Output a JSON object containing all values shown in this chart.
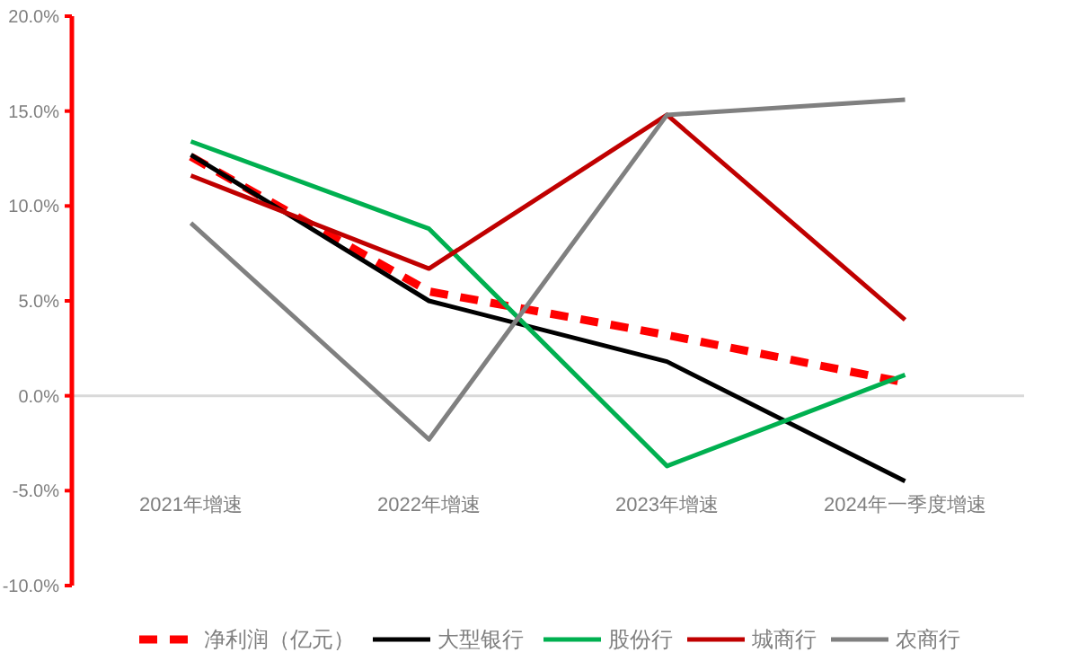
{
  "chart_data": {
    "type": "line",
    "categories": [
      "2021年增速",
      "2022年增速",
      "2023年增速",
      "2024年一季度增速"
    ],
    "series": [
      {
        "name": "净利润（亿元）",
        "color": "#ff0000",
        "line_style": "dashed",
        "values": [
          12.6,
          5.5,
          3.2,
          0.7
        ]
      },
      {
        "name": "大型银行",
        "color": "#000000",
        "values": [
          12.7,
          5.0,
          1.8,
          -4.5
        ]
      },
      {
        "name": "股份行",
        "color": "#00b050",
        "values": [
          13.4,
          8.8,
          -3.7,
          1.1
        ]
      },
      {
        "name": "城商行",
        "color": "#c00000",
        "values": [
          11.6,
          6.7,
          14.8,
          4.0
        ]
      },
      {
        "name": "农商行",
        "color": "#808080",
        "values": [
          9.1,
          -2.3,
          14.8,
          15.6
        ]
      }
    ],
    "ylim": [
      -10,
      20
    ],
    "yticks": [
      {
        "value": -10,
        "label": "-10.0%"
      },
      {
        "value": -5,
        "label": "-5.0%"
      },
      {
        "value": 0,
        "label": "0.0%"
      },
      {
        "value": 5,
        "label": "5.0%"
      },
      {
        "value": 10,
        "label": "10.0%"
      },
      {
        "value": 15,
        "label": "15.0%"
      },
      {
        "value": 20,
        "label": "20.0%"
      }
    ],
    "ref_lines": [
      {
        "axis": "y",
        "value": 0,
        "color": "#d9d9d9"
      }
    ],
    "legend": "bottom",
    "marker": "none",
    "grid": false
  }
}
